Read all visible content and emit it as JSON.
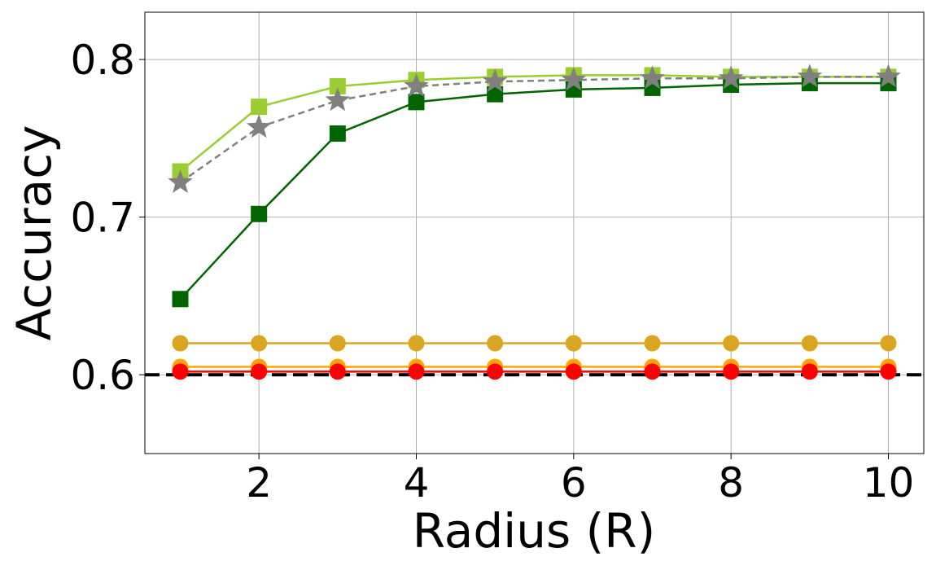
{
  "chart_data": {
    "type": "line",
    "xlabel": "Radius (R)",
    "ylabel": "Accuracy",
    "x": [
      1,
      2,
      3,
      4,
      5,
      6,
      7,
      8,
      9,
      10
    ],
    "series": [
      {
        "color": "#daa520",
        "marker": "circle",
        "dash": false,
        "values": [
          0.62,
          0.62,
          0.62,
          0.62,
          0.62,
          0.62,
          0.62,
          0.62,
          0.62,
          0.62
        ]
      },
      {
        "color": "#ffa500",
        "marker": "circle",
        "dash": false,
        "values": [
          0.605,
          0.605,
          0.605,
          0.605,
          0.605,
          0.605,
          0.605,
          0.605,
          0.605,
          0.605
        ]
      },
      {
        "color": "#9acd32",
        "marker": "square",
        "dash": false,
        "values": [
          0.729,
          0.77,
          0.783,
          0.787,
          0.789,
          0.79,
          0.79,
          0.789,
          0.789,
          0.789
        ]
      },
      {
        "color": "#006400",
        "marker": "square",
        "dash": false,
        "values": [
          0.648,
          0.702,
          0.753,
          0.773,
          0.778,
          0.781,
          0.782,
          0.784,
          0.785,
          0.785
        ]
      },
      {
        "color": "#808080",
        "marker": "star",
        "dash": true,
        "values": [
          0.722,
          0.757,
          0.774,
          0.783,
          0.786,
          0.787,
          0.788,
          0.788,
          0.789,
          0.789
        ]
      },
      {
        "color": "#ff0000",
        "marker": "circle",
        "dash": false,
        "values": [
          0.602,
          0.602,
          0.602,
          0.602,
          0.602,
          0.602,
          0.602,
          0.602,
          0.602,
          0.602
        ]
      }
    ],
    "reference_line": {
      "y": 0.6,
      "color": "#000000"
    },
    "xlim": [
      0.55,
      10.45
    ],
    "ylim": [
      0.55,
      0.83
    ],
    "xticks": [
      2,
      4,
      6,
      8,
      10
    ],
    "yticks": [
      0.6,
      0.7,
      0.8
    ],
    "grid": true
  }
}
